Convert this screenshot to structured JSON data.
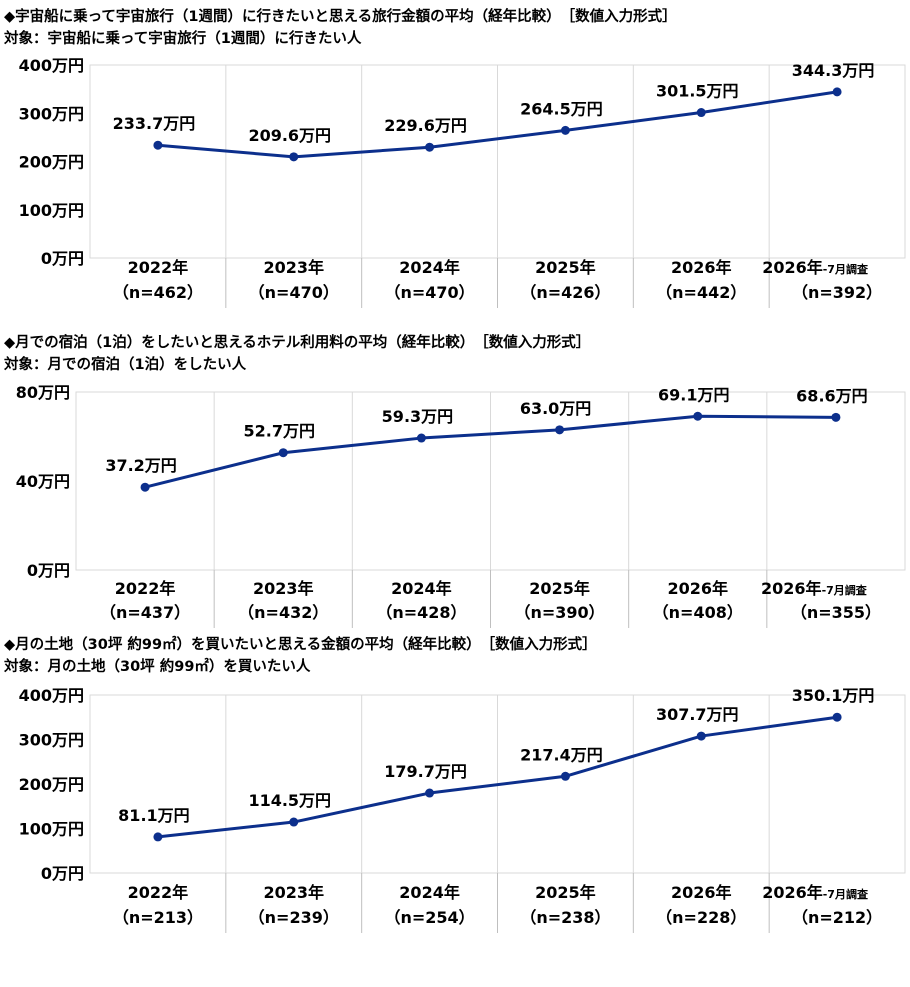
{
  "accent_color": "#0c2f8c",
  "grid_color": "#d9d9d9",
  "chart_data": [
    {
      "type": "line",
      "title": "◆宇宙船に乗って宇宙旅行（1週間）に行きたいと思える旅行金額の平均（経年比較）　［数値入力形式］",
      "subtitle": "対象：宇宙船に乗って宇宙旅行（1週間）に行きたい人",
      "categories": [
        "2022年",
        "2023年",
        "2024年",
        "2025年",
        "2026年",
        "2026年"
      ],
      "category_notes": [
        "",
        "",
        "",
        "",
        "",
        "-7月調査"
      ],
      "sample_sizes": [
        "（n=462）",
        "（n=470）",
        "（n=470）",
        "（n=426）",
        "（n=442）",
        "（n=392）"
      ],
      "values": [
        233.7,
        209.6,
        229.6,
        264.5,
        301.5,
        344.3
      ],
      "value_labels": [
        "233.7万円",
        "209.6万円",
        "229.6万円",
        "264.5万円",
        "301.5万円",
        "344.3万円"
      ],
      "ylim": [
        0,
        400
      ],
      "yticks": [
        0,
        100,
        200,
        300,
        400
      ],
      "ytick_labels": [
        "0万円",
        "100万円",
        "200万円",
        "300万円",
        "400万円"
      ],
      "grid": "vertical"
    },
    {
      "type": "line",
      "title": "◆月での宿泊（1泊）をしたいと思えるホテル利用料の平均（経年比較）　［数値入力形式］",
      "subtitle": "対象：月での宿泊（1泊）をしたい人",
      "categories": [
        "2022年",
        "2023年",
        "2024年",
        "2025年",
        "2026年",
        "2026年"
      ],
      "category_notes": [
        "",
        "",
        "",
        "",
        "",
        "-7月調査"
      ],
      "sample_sizes": [
        "（n=437）",
        "（n=432）",
        "（n=428）",
        "（n=390）",
        "（n=408）",
        "（n=355）"
      ],
      "values": [
        37.2,
        52.7,
        59.3,
        63.0,
        69.1,
        68.6
      ],
      "value_labels": [
        "37.2万円",
        "52.7万円",
        "59.3万円",
        "63.0万円",
        "69.1万円",
        "68.6万円"
      ],
      "ylim": [
        0,
        80
      ],
      "yticks": [
        0,
        40,
        80
      ],
      "ytick_labels": [
        "0万円",
        "40万円",
        "80万円"
      ],
      "grid": "vertical"
    },
    {
      "type": "line",
      "title": "◆月の土地（30坪 約99㎡）を買いたいと思える金額の平均（経年比較）　［数値入力形式］",
      "subtitle": "対象：月の土地（30坪 約99㎡）を買いたい人",
      "categories": [
        "2022年",
        "2023年",
        "2024年",
        "2025年",
        "2026年",
        "2026年"
      ],
      "category_notes": [
        "",
        "",
        "",
        "",
        "",
        "-7月調査"
      ],
      "sample_sizes": [
        "（n=213）",
        "（n=239）",
        "（n=254）",
        "（n=238）",
        "（n=228）",
        "（n=212）"
      ],
      "values": [
        81.1,
        114.5,
        179.7,
        217.4,
        307.7,
        350.1
      ],
      "value_labels": [
        "81.1万円",
        "114.5万円",
        "179.7万円",
        "217.4万円",
        "307.7万円",
        "350.1万円"
      ],
      "ylim": [
        0,
        400
      ],
      "yticks": [
        0,
        100,
        200,
        300,
        400
      ],
      "ytick_labels": [
        "0万円",
        "100万円",
        "200万円",
        "300万円",
        "400万円"
      ],
      "grid": "vertical"
    }
  ]
}
